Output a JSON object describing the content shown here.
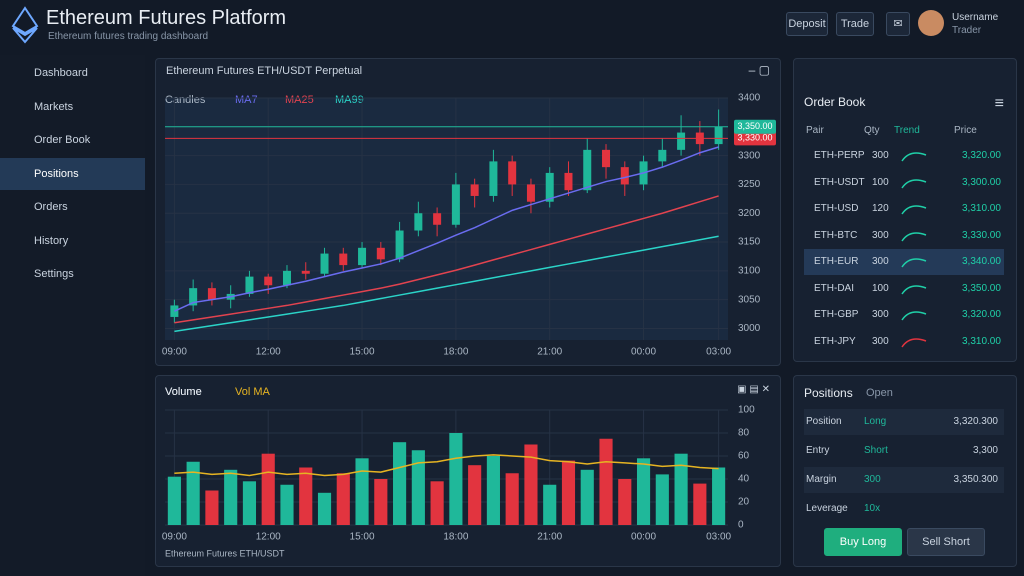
{
  "header": {
    "title": "Ethereum Futures Platform",
    "subtitle": "Ethereum futures trading dashboard",
    "buttons": [
      "Deposit",
      "Trade"
    ],
    "user": "Username",
    "role": "Trader"
  },
  "sidebar": {
    "items": [
      "Dashboard",
      "Markets",
      "Order Book",
      "Positions",
      "Orders",
      "History",
      "Settings"
    ],
    "active": 3
  },
  "main_panel": {
    "title": "Ethereum Futures ETH/USDT Perpetual",
    "legend_label": "Candles"
  },
  "volume_panel": {
    "title": "Volume",
    "legend_label": "Volume",
    "footer": "Ethereum Futures ETH/USDT"
  },
  "chart_data": [
    {
      "type": "candlestick",
      "categories": [
        "09:00",
        null,
        null,
        null,
        null,
        "12:00",
        null,
        null,
        null,
        null,
        "15:00",
        null,
        null,
        null,
        null,
        "18:00",
        null,
        null,
        null,
        null,
        "21:00",
        null,
        null,
        null,
        null,
        "00:00",
        null,
        null,
        null,
        "03:00"
      ],
      "open": [
        3020,
        3040,
        3070,
        3050,
        3060,
        3090,
        3075,
        3100,
        3095,
        3130,
        3110,
        3140,
        3120,
        3170,
        3200,
        3180,
        3250,
        3230,
        3290,
        3250,
        3220,
        3270,
        3240,
        3310,
        3280,
        3250,
        3290,
        3310,
        3340,
        3320
      ],
      "close": [
        3040,
        3070,
        3050,
        3060,
        3090,
        3075,
        3100,
        3095,
        3130,
        3110,
        3140,
        3120,
        3170,
        3200,
        3180,
        3250,
        3230,
        3290,
        3250,
        3220,
        3270,
        3240,
        3310,
        3280,
        3250,
        3290,
        3310,
        3340,
        3320,
        3350
      ],
      "high": [
        3050,
        3085,
        3080,
        3075,
        3100,
        3095,
        3110,
        3115,
        3140,
        3140,
        3150,
        3150,
        3185,
        3220,
        3210,
        3270,
        3260,
        3310,
        3300,
        3260,
        3280,
        3290,
        3330,
        3320,
        3290,
        3300,
        3330,
        3370,
        3360,
        3380
      ],
      "low": [
        3010,
        3030,
        3040,
        3035,
        3055,
        3060,
        3070,
        3085,
        3090,
        3100,
        3105,
        3110,
        3115,
        3160,
        3160,
        3175,
        3210,
        3220,
        3230,
        3200,
        3210,
        3230,
        3235,
        3260,
        3230,
        3240,
        3280,
        3300,
        3300,
        3310
      ],
      "up_color": "#1fb89a",
      "down_color": "#e2343f",
      "series": [
        {
          "name": "MA7",
          "color": "#6a6cf0",
          "values": [
            3030,
            3045,
            3050,
            3055,
            3062,
            3068,
            3075,
            3082,
            3090,
            3098,
            3105,
            3112,
            3122,
            3135,
            3148,
            3162,
            3175,
            3190,
            3205,
            3215,
            3225,
            3235,
            3245,
            3255,
            3262,
            3270,
            3280,
            3292,
            3305,
            3315
          ]
        },
        {
          "name": "MA25",
          "color": "#e2434f",
          "values": [
            3010,
            3015,
            3020,
            3025,
            3030,
            3035,
            3040,
            3046,
            3052,
            3058,
            3064,
            3070,
            3077,
            3085,
            3093,
            3101,
            3110,
            3119,
            3128,
            3137,
            3146,
            3155,
            3164,
            3173,
            3182,
            3191,
            3200,
            3210,
            3220,
            3230
          ]
        },
        {
          "name": "MA99",
          "color": "#2bd4c8",
          "values": [
            2995,
            3000,
            3005,
            3010,
            3015,
            3020,
            3025,
            3030,
            3035,
            3040,
            3046,
            3052,
            3058,
            3064,
            3070,
            3076,
            3082,
            3088,
            3094,
            3100,
            3106,
            3112,
            3118,
            3124,
            3130,
            3136,
            3142,
            3148,
            3154,
            3160
          ]
        }
      ],
      "price_lines": [
        {
          "value": 3330,
          "label": "3,330.00",
          "color": "#e2343f"
        },
        {
          "value": 3350,
          "label": "3,350.00",
          "color": "#1fb89a"
        }
      ],
      "ylim": [
        2980,
        3400
      ],
      "yticks": [
        3000,
        3050,
        3100,
        3150,
        3200,
        3250,
        3300,
        3350,
        3400
      ],
      "grid": true
    },
    {
      "type": "bar",
      "categories": [
        "09:00",
        null,
        null,
        null,
        null,
        "12:00",
        null,
        null,
        null,
        null,
        "15:00",
        null,
        null,
        null,
        null,
        "18:00",
        null,
        null,
        null,
        null,
        "21:00",
        null,
        null,
        null,
        null,
        "00:00",
        null,
        null,
        null,
        "03:00"
      ],
      "values": [
        42,
        55,
        30,
        48,
        38,
        62,
        35,
        50,
        28,
        45,
        58,
        40,
        72,
        65,
        38,
        80,
        52,
        60,
        45,
        70,
        35,
        56,
        48,
        75,
        40,
        58,
        44,
        62,
        36,
        50
      ],
      "series": [
        {
          "name": "Vol MA",
          "color": "#e6b422",
          "values": [
            45,
            46,
            44,
            45,
            43,
            46,
            44,
            45,
            43,
            44,
            47,
            46,
            50,
            54,
            55,
            58,
            60,
            61,
            60,
            59,
            56,
            55,
            53,
            55,
            54,
            53,
            51,
            52,
            50,
            49
          ]
        }
      ],
      "ylim": [
        0,
        100
      ],
      "yticks": [
        0,
        20,
        40,
        60,
        80,
        100
      ],
      "grid": true
    }
  ],
  "order_book": {
    "title": "Order Book",
    "columns": [
      "Pair",
      "Qty",
      "Trend",
      "Price"
    ],
    "rows": [
      [
        "ETH-PERP",
        "300",
        "up",
        "3,320.00"
      ],
      [
        "ETH-USDT",
        "100",
        "up",
        "3,300.00"
      ],
      [
        "ETH-USD",
        "120",
        "up",
        "3,310.00"
      ],
      [
        "ETH-BTC",
        "300",
        "up",
        "3,330.00"
      ],
      [
        "ETH-EUR",
        "300",
        "up",
        "3,340.00"
      ],
      [
        "ETH-DAI",
        "100",
        "up",
        "3,350.00"
      ],
      [
        "ETH-GBP",
        "300",
        "up",
        "3,320.00"
      ],
      [
        "ETH-JPY",
        "300",
        "down",
        "3,310.00"
      ]
    ],
    "highlight": 4
  },
  "positions": {
    "title": "Positions",
    "subtitle": "Open",
    "rows": [
      [
        "Position",
        "Long",
        "3,320.300"
      ],
      [
        "Entry",
        "Short",
        "3,300"
      ],
      [
        "Margin",
        "300",
        "3,350.300"
      ],
      [
        "Leverage",
        "10x",
        ""
      ]
    ],
    "buttons": [
      "Buy Long",
      "Sell Short"
    ]
  }
}
